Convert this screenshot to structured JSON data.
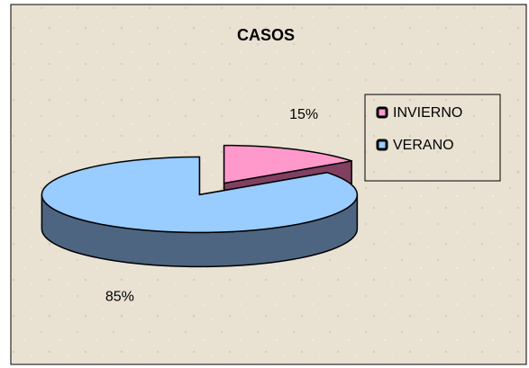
{
  "chart_data": {
    "type": "pie",
    "title": "CASOS",
    "categories": [
      "INVIERNO",
      "VERANO"
    ],
    "values": [
      15,
      85
    ],
    "value_labels": [
      "15%",
      "85%"
    ],
    "colors": [
      "#ff99cc",
      "#99ccff"
    ],
    "side_colors": [
      "#804060",
      "#4d6580"
    ],
    "legend": "right"
  }
}
